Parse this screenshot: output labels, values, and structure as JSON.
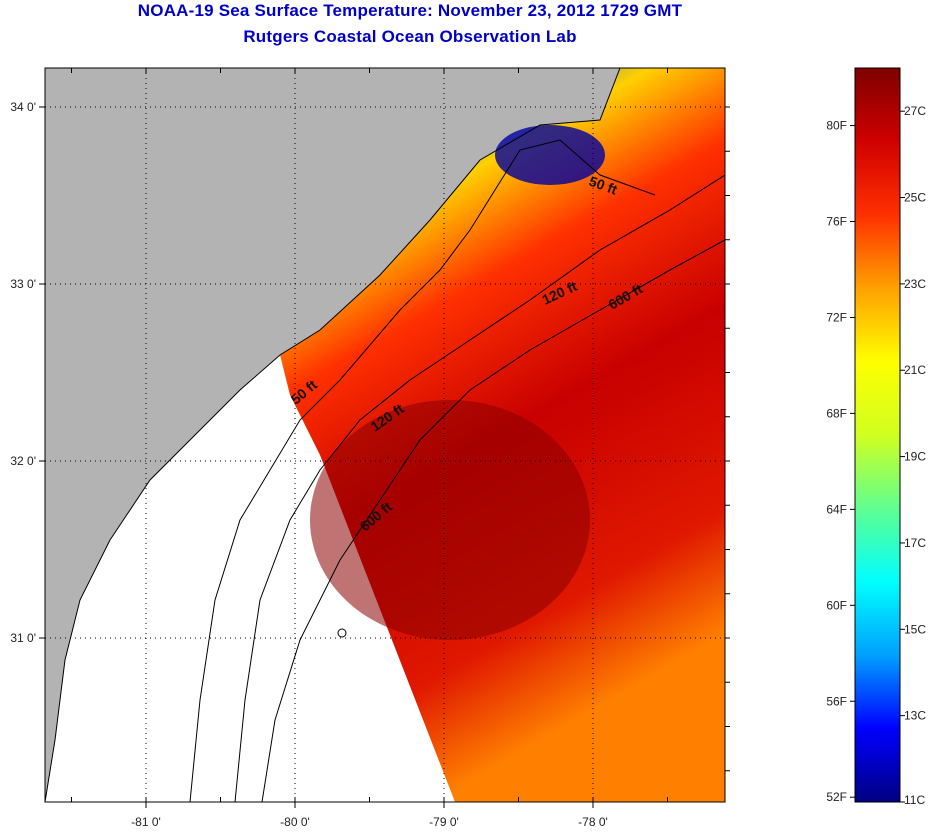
{
  "title_line1": "NOAA-19 Sea Surface Temperature:  November 23, 2012 1729 GMT",
  "title_line2": "Rutgers Coastal Ocean Observation Lab",
  "axes": {
    "lon_labels": [
      "-81 0'",
      "-80 0'",
      "-79 0'",
      "-78 0'"
    ],
    "lat_labels": [
      "34 0'",
      "33 0'",
      "32 0'",
      "31 0'"
    ],
    "lon_values": [
      -81,
      -80,
      -79,
      -78
    ],
    "lat_values": [
      34,
      33,
      32,
      31
    ]
  },
  "contours": {
    "labels": [
      "50 ft",
      "120 ft",
      "600 ft",
      "50 ft",
      "120 ft",
      "600 ft"
    ]
  },
  "colorbar": {
    "fahrenheit": [
      "80F",
      "76F",
      "72F",
      "68F",
      "64F",
      "60F",
      "56F",
      "52F"
    ],
    "fahrenheit_values": [
      80,
      76,
      72,
      68,
      64,
      60,
      56,
      52
    ],
    "celsius": [
      "27C",
      "25C",
      "23C",
      "21C",
      "19C",
      "17C",
      "15C",
      "13C",
      "11C"
    ],
    "celsius_values": [
      27,
      25,
      23,
      21,
      19,
      17,
      15,
      13,
      11
    ],
    "range_c": [
      11,
      28
    ],
    "colors": [
      "#000080",
      "#0000ff",
      "#00a0ff",
      "#00ffff",
      "#60ff90",
      "#d0ff20",
      "#ffff00",
      "#ffa000",
      "#ff3000",
      "#d00000",
      "#800000"
    ]
  }
}
